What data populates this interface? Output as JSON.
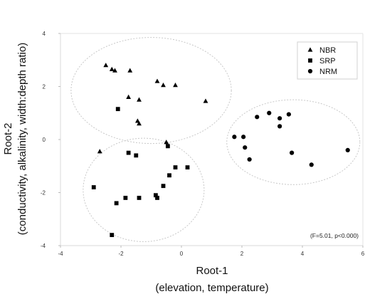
{
  "chart_data": {
    "type": "scatter",
    "title": "",
    "xlabel": "Root-1",
    "xlabel_sub": "(elevation, temperature)",
    "ylabel": "Root-2",
    "ylabel_sub": "(conductivity, alkalinity, width:depth ratio)",
    "xlim": [
      -4,
      6
    ],
    "ylim": [
      -4,
      4
    ],
    "xticks": [
      "-4",
      "-2",
      "0",
      "2",
      "4",
      "6"
    ],
    "yticks": [
      "-4",
      "-2",
      "0",
      "2",
      "4"
    ],
    "grid": false,
    "legend_position": "top-right",
    "annotation": "(F=5.01, p<0.000)",
    "series": [
      {
        "name": "NBR",
        "marker": "triangle",
        "color": "#000000",
        "points": [
          [
            -2.5,
            2.8
          ],
          [
            -2.3,
            2.65
          ],
          [
            -2.2,
            2.6
          ],
          [
            -1.7,
            2.6
          ],
          [
            -0.8,
            2.2
          ],
          [
            -0.6,
            2.05
          ],
          [
            -0.2,
            2.05
          ],
          [
            0.8,
            1.45
          ],
          [
            -1.75,
            1.6
          ],
          [
            -1.4,
            1.5
          ],
          [
            -1.45,
            0.7
          ],
          [
            -1.4,
            0.6
          ],
          [
            -0.5,
            -0.1
          ],
          [
            -2.7,
            -0.45
          ]
        ]
      },
      {
        "name": "SRP",
        "marker": "square",
        "color": "#000000",
        "points": [
          [
            -2.1,
            1.15
          ],
          [
            -1.75,
            -0.5
          ],
          [
            -1.5,
            -0.6
          ],
          [
            -0.45,
            -0.25
          ],
          [
            -0.4,
            -1.35
          ],
          [
            -0.2,
            -1.05
          ],
          [
            0.2,
            -1.05
          ],
          [
            -0.6,
            -1.75
          ],
          [
            -0.85,
            -2.1
          ],
          [
            -0.8,
            -2.2
          ],
          [
            -1.4,
            -2.2
          ],
          [
            -1.85,
            -2.2
          ],
          [
            -2.15,
            -2.4
          ],
          [
            -2.9,
            -1.8
          ],
          [
            -2.3,
            -3.6
          ]
        ]
      },
      {
        "name": "NRM",
        "marker": "circle",
        "color": "#000000",
        "points": [
          [
            1.75,
            0.1
          ],
          [
            2.05,
            0.1
          ],
          [
            2.1,
            -0.3
          ],
          [
            2.25,
            -0.75
          ],
          [
            2.5,
            0.85
          ],
          [
            2.9,
            1.0
          ],
          [
            3.25,
            0.8
          ],
          [
            3.25,
            0.5
          ],
          [
            3.55,
            0.95
          ],
          [
            3.65,
            -0.5
          ],
          [
            4.3,
            -0.95
          ],
          [
            5.5,
            -0.4
          ]
        ]
      }
    ]
  }
}
